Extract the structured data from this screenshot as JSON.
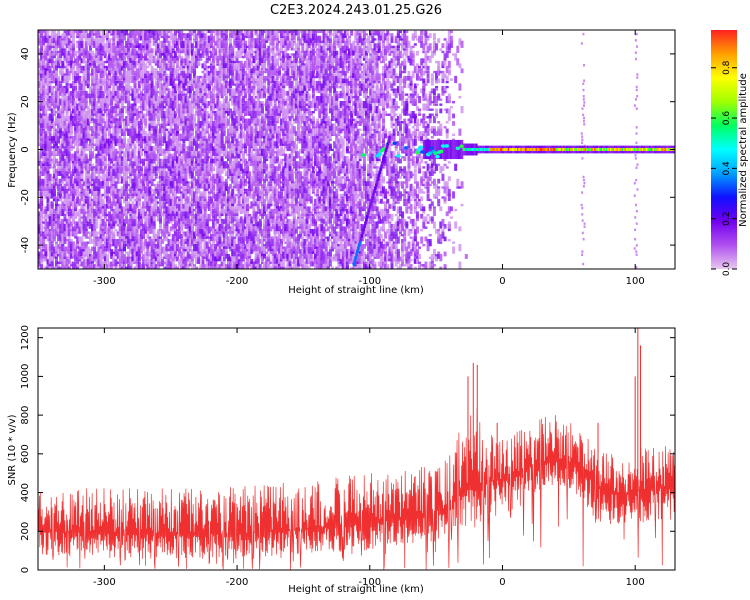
{
  "title": "C2E3.2024.243.01.25.G26",
  "chart_data": [
    {
      "type": "heatmap",
      "xlabel": "Height of straight line (km)",
      "ylabel": "Frequency (Hz)",
      "xlim": [
        -350,
        130
      ],
      "ylim": [
        -50,
        50
      ],
      "xticks": [
        -300,
        -200,
        -100,
        0,
        100
      ],
      "yticks": [
        -40,
        -20,
        0,
        20,
        40
      ],
      "colorbar": {
        "label": "Normalized spectral amplitude",
        "range": [
          0,
          0.95
        ],
        "ticks": [
          "0.0",
          "0.2",
          "0.4",
          "0.6",
          "0.8"
        ],
        "colormap": [
          "#e8c8f0",
          "#b050f0",
          "#7000f0",
          "#1010ff",
          "#00a0ff",
          "#00ffff",
          "#00ff60",
          "#a0ff00",
          "#ffff00",
          "#ffa000",
          "#ff2020"
        ]
      },
      "features": {
        "noise_region_x": [
          -350,
          -40
        ],
        "tone_line_frequency": 0,
        "tone_line_x": [
          -30,
          130
        ],
        "diagonal_trace_x": [
          -112,
          -85
        ],
        "diagonal_trace_y": [
          -48,
          5
        ]
      }
    },
    {
      "type": "line",
      "xlabel": "Height of straight line (km)",
      "ylabel": "SNR (10 * v/v)",
      "xlim": [
        -350,
        130
      ],
      "ylim": [
        0,
        1250
      ],
      "xticks": [
        -300,
        -200,
        -100,
        0,
        100
      ],
      "yticks": [
        0,
        200,
        400,
        600,
        800,
        1000,
        1200
      ],
      "color": "#f03030",
      "envelope": {
        "x": [
          -350,
          -300,
          -250,
          -200,
          -150,
          -100,
          -60,
          -40,
          -30,
          -20,
          -10,
          0,
          10,
          20,
          30,
          40,
          50,
          60,
          70,
          80,
          90,
          100,
          110,
          130
        ],
        "mean": [
          200,
          190,
          185,
          190,
          210,
          240,
          280,
          330,
          400,
          440,
          460,
          470,
          500,
          530,
          560,
          580,
          560,
          520,
          440,
          400,
          390,
          400,
          420,
          420
        ],
        "low": [
          70,
          60,
          55,
          60,
          80,
          100,
          130,
          160,
          200,
          220,
          240,
          260,
          300,
          360,
          420,
          450,
          420,
          360,
          250,
          230,
          220,
          230,
          250,
          260
        ],
        "high": [
          430,
          430,
          420,
          430,
          460,
          500,
          540,
          620,
          760,
          880,
          700,
          700,
          720,
          760,
          790,
          800,
          780,
          740,
          640,
          600,
          600,
          640,
          640,
          640
        ]
      },
      "spikes": [
        [
          -26,
          1000
        ],
        [
          -22,
          1070
        ],
        [
          -19,
          1060
        ],
        [
          -4,
          760
        ],
        [
          72,
          760
        ],
        [
          100,
          1000
        ],
        [
          102,
          1250
        ],
        [
          104,
          1160
        ]
      ]
    }
  ]
}
